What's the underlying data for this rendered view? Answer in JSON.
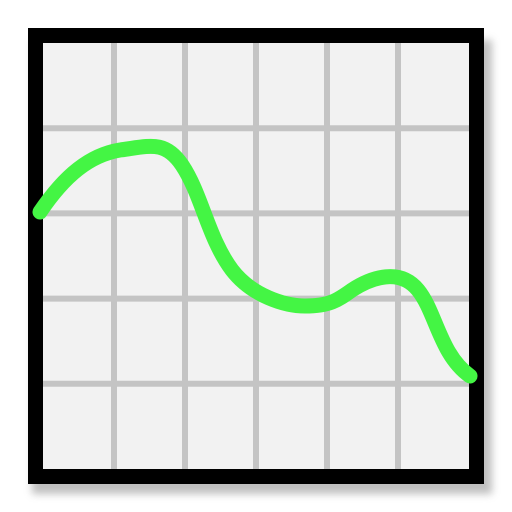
{
  "icon": {
    "name": "line-graph-icon",
    "colors": {
      "frame": "#000000",
      "panel": "#f2f2f2",
      "grid": "#c4c4c4",
      "line": "#44f544",
      "shadow": "#8c8c8c"
    },
    "grid": {
      "columns": 6,
      "rows": 5
    }
  }
}
